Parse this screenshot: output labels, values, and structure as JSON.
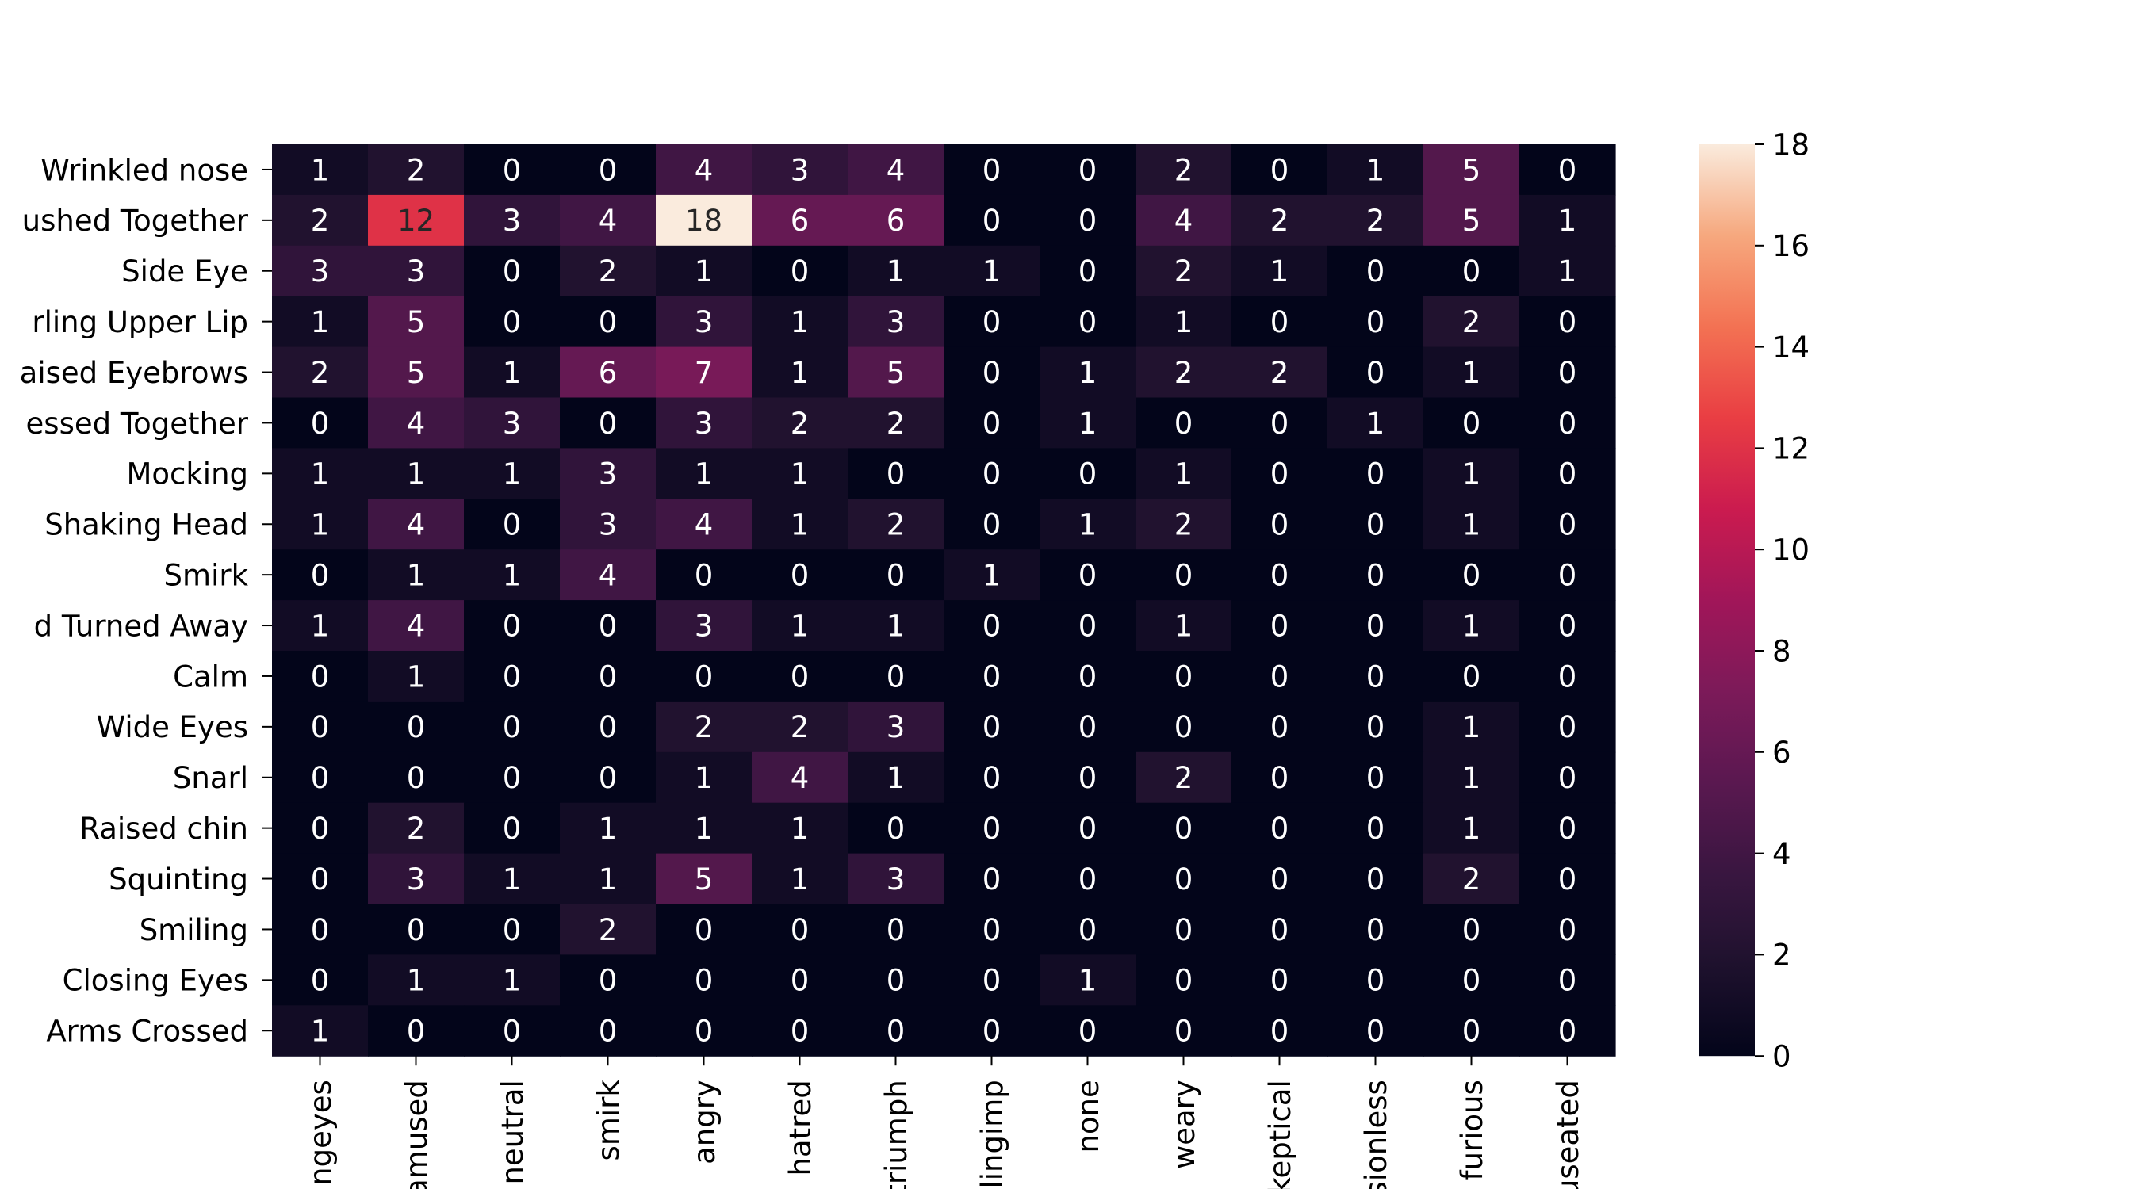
{
  "chart_data": {
    "type": "heatmap",
    "title": "",
    "xlabel": "",
    "ylabel": "",
    "rows": [
      "Wrinkled nose",
      "ushed Together",
      "Side Eye",
      "rling Upper Lip",
      "aised Eyebrows",
      "essed Together",
      "Mocking",
      "Shaking Head",
      "Smirk",
      "d Turned Away",
      "Calm",
      "Wide Eyes",
      "Snarl",
      "Raised chin",
      "Squinting",
      "Smiling",
      "Closing Eyes",
      "Arms Crossed"
    ],
    "columns": [
      "ngeyes",
      "amused",
      "neutral",
      "smirk",
      "angry",
      "hatred",
      "triumph",
      "lingimp",
      "none",
      "weary",
      "keptical",
      "sionless",
      "furious",
      "useated"
    ],
    "values": [
      [
        1,
        2,
        0,
        0,
        4,
        3,
        4,
        0,
        0,
        2,
        0,
        1,
        5,
        0
      ],
      [
        2,
        12,
        3,
        4,
        18,
        6,
        6,
        0,
        0,
        4,
        2,
        2,
        5,
        1
      ],
      [
        3,
        3,
        0,
        2,
        1,
        0,
        1,
        1,
        0,
        2,
        1,
        0,
        0,
        1
      ],
      [
        1,
        5,
        0,
        0,
        3,
        1,
        3,
        0,
        0,
        1,
        0,
        0,
        2,
        0
      ],
      [
        2,
        5,
        1,
        6,
        7,
        1,
        5,
        0,
        1,
        2,
        2,
        0,
        1,
        0
      ],
      [
        0,
        4,
        3,
        0,
        3,
        2,
        2,
        0,
        1,
        0,
        0,
        1,
        0,
        0
      ],
      [
        1,
        1,
        1,
        3,
        1,
        1,
        0,
        0,
        0,
        1,
        0,
        0,
        1,
        0
      ],
      [
        1,
        4,
        0,
        3,
        4,
        1,
        2,
        0,
        1,
        2,
        0,
        0,
        1,
        0
      ],
      [
        0,
        1,
        1,
        4,
        0,
        0,
        0,
        1,
        0,
        0,
        0,
        0,
        0,
        0
      ],
      [
        1,
        4,
        0,
        0,
        3,
        1,
        1,
        0,
        0,
        1,
        0,
        0,
        1,
        0
      ],
      [
        0,
        1,
        0,
        0,
        0,
        0,
        0,
        0,
        0,
        0,
        0,
        0,
        0,
        0
      ],
      [
        0,
        0,
        0,
        0,
        2,
        2,
        3,
        0,
        0,
        0,
        0,
        0,
        1,
        0
      ],
      [
        0,
        0,
        0,
        0,
        1,
        4,
        1,
        0,
        0,
        2,
        0,
        0,
        1,
        0
      ],
      [
        0,
        2,
        0,
        1,
        1,
        1,
        0,
        0,
        0,
        0,
        0,
        0,
        1,
        0
      ],
      [
        0,
        3,
        1,
        1,
        5,
        1,
        3,
        0,
        0,
        0,
        0,
        0,
        2,
        0
      ],
      [
        0,
        0,
        0,
        2,
        0,
        0,
        0,
        0,
        0,
        0,
        0,
        0,
        0,
        0
      ],
      [
        0,
        1,
        1,
        0,
        0,
        0,
        0,
        0,
        1,
        0,
        0,
        0,
        0,
        0
      ],
      [
        1,
        0,
        0,
        0,
        0,
        0,
        0,
        0,
        0,
        0,
        0,
        0,
        0,
        0
      ]
    ],
    "vmin": 0,
    "vmax": 18,
    "colormap": "rocket",
    "colorbar_ticks": [
      0,
      2,
      4,
      6,
      8,
      10,
      12,
      14,
      16,
      18
    ],
    "annotate_cells": true,
    "grid": false,
    "legend": "colorbar-right"
  }
}
